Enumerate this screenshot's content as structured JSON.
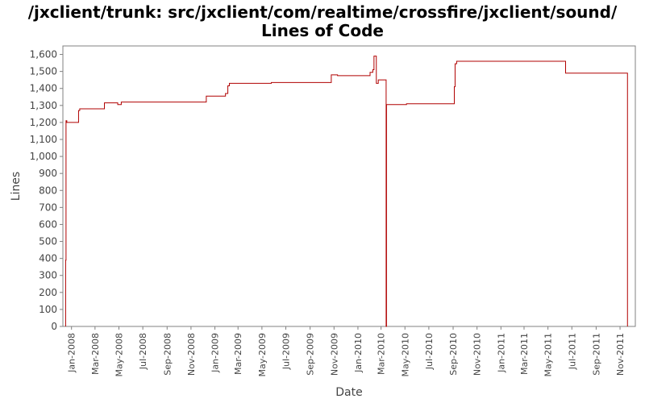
{
  "chart_data": {
    "type": "line",
    "title_line1": "/jxclient/trunk: src/jxclient/com/realtime/crossfire/jxclient/sound/",
    "title_line2": "Lines of Code",
    "xlabel": "Date",
    "ylabel": "Lines",
    "ylim": [
      0,
      1650
    ],
    "xlim": [
      "2007-12-10",
      "2011-12-10"
    ],
    "grid": false,
    "step": true,
    "line_color": "#b00000",
    "y_ticks": [
      0,
      100,
      200,
      300,
      400,
      500,
      600,
      700,
      800,
      900,
      1000,
      1100,
      1200,
      1300,
      1400,
      1500,
      1600
    ],
    "y_tick_labels": [
      "0",
      "100",
      "200",
      "300",
      "400",
      "500",
      "600",
      "700",
      "800",
      "900",
      "1,000",
      "1,100",
      "1,200",
      "1,300",
      "1,400",
      "1,500",
      "1,600"
    ],
    "x_ticks": [
      {
        "date": "2008-01-01",
        "label": "Jan-2008"
      },
      {
        "date": "2008-03-01",
        "label": "Mar-2008"
      },
      {
        "date": "2008-05-01",
        "label": "May-2008"
      },
      {
        "date": "2008-07-01",
        "label": "Jul-2008"
      },
      {
        "date": "2008-09-01",
        "label": "Sep-2008"
      },
      {
        "date": "2008-11-01",
        "label": "Nov-2008"
      },
      {
        "date": "2009-01-01",
        "label": "Jan-2009"
      },
      {
        "date": "2009-03-01",
        "label": "Mar-2009"
      },
      {
        "date": "2009-05-01",
        "label": "May-2009"
      },
      {
        "date": "2009-07-01",
        "label": "Jul-2009"
      },
      {
        "date": "2009-09-01",
        "label": "Sep-2009"
      },
      {
        "date": "2009-11-01",
        "label": "Nov-2009"
      },
      {
        "date": "2010-01-01",
        "label": "Jan-2010"
      },
      {
        "date": "2010-03-01",
        "label": "Mar-2010"
      },
      {
        "date": "2010-05-01",
        "label": "May-2010"
      },
      {
        "date": "2010-07-01",
        "label": "Jul-2010"
      },
      {
        "date": "2010-09-01",
        "label": "Sep-2010"
      },
      {
        "date": "2010-11-01",
        "label": "Nov-2010"
      },
      {
        "date": "2011-01-01",
        "label": "Jan-2011"
      },
      {
        "date": "2011-03-01",
        "label": "Mar-2011"
      },
      {
        "date": "2011-05-01",
        "label": "May-2011"
      },
      {
        "date": "2011-07-01",
        "label": "Jul-2011"
      },
      {
        "date": "2011-09-01",
        "label": "Sep-2011"
      },
      {
        "date": "2011-11-01",
        "label": "Nov-2011"
      }
    ],
    "series": [
      {
        "points": [
          {
            "x": "2007-12-17",
            "y": 0
          },
          {
            "x": "2007-12-17",
            "y": 390
          },
          {
            "x": "2007-12-18",
            "y": 390
          },
          {
            "x": "2007-12-18",
            "y": 1210
          },
          {
            "x": "2007-12-20",
            "y": 1210
          },
          {
            "x": "2007-12-20",
            "y": 1200
          },
          {
            "x": "2008-01-19",
            "y": 1200
          },
          {
            "x": "2008-01-19",
            "y": 1270
          },
          {
            "x": "2008-01-22",
            "y": 1270
          },
          {
            "x": "2008-01-22",
            "y": 1280
          },
          {
            "x": "2008-03-25",
            "y": 1280
          },
          {
            "x": "2008-03-25",
            "y": 1315
          },
          {
            "x": "2008-04-28",
            "y": 1315
          },
          {
            "x": "2008-04-28",
            "y": 1305
          },
          {
            "x": "2008-05-07",
            "y": 1305
          },
          {
            "x": "2008-05-07",
            "y": 1320
          },
          {
            "x": "2008-12-10",
            "y": 1320
          },
          {
            "x": "2008-12-10",
            "y": 1355
          },
          {
            "x": "2009-01-28",
            "y": 1355
          },
          {
            "x": "2009-01-28",
            "y": 1370
          },
          {
            "x": "2009-02-03",
            "y": 1370
          },
          {
            "x": "2009-02-03",
            "y": 1415
          },
          {
            "x": "2009-02-07",
            "y": 1415
          },
          {
            "x": "2009-02-07",
            "y": 1430
          },
          {
            "x": "2009-05-25",
            "y": 1430
          },
          {
            "x": "2009-05-25",
            "y": 1435
          },
          {
            "x": "2009-10-25",
            "y": 1435
          },
          {
            "x": "2009-10-25",
            "y": 1480
          },
          {
            "x": "2009-11-10",
            "y": 1480
          },
          {
            "x": "2009-11-10",
            "y": 1475
          },
          {
            "x": "2010-02-01",
            "y": 1475
          },
          {
            "x": "2010-02-01",
            "y": 1495
          },
          {
            "x": "2010-02-08",
            "y": 1495
          },
          {
            "x": "2010-02-08",
            "y": 1510
          },
          {
            "x": "2010-02-11",
            "y": 1510
          },
          {
            "x": "2010-02-11",
            "y": 1590
          },
          {
            "x": "2010-02-17",
            "y": 1590
          },
          {
            "x": "2010-02-17",
            "y": 1430
          },
          {
            "x": "2010-02-22",
            "y": 1430
          },
          {
            "x": "2010-02-22",
            "y": 1450
          },
          {
            "x": "2010-03-14",
            "y": 1450
          },
          {
            "x": "2010-03-14",
            "y": 0
          },
          {
            "x": "2010-03-15",
            "y": 0
          },
          {
            "x": "2010-03-15",
            "y": 1305
          },
          {
            "x": "2010-05-05",
            "y": 1305
          },
          {
            "x": "2010-05-05",
            "y": 1310
          },
          {
            "x": "2010-09-04",
            "y": 1310
          },
          {
            "x": "2010-09-04",
            "y": 1410
          },
          {
            "x": "2010-09-06",
            "y": 1410
          },
          {
            "x": "2010-09-06",
            "y": 1545
          },
          {
            "x": "2010-09-10",
            "y": 1545
          },
          {
            "x": "2010-09-10",
            "y": 1560
          },
          {
            "x": "2011-06-15",
            "y": 1560
          },
          {
            "x": "2011-06-15",
            "y": 1490
          },
          {
            "x": "2011-11-20",
            "y": 1490
          },
          {
            "x": "2011-11-20",
            "y": 0
          }
        ]
      }
    ]
  }
}
